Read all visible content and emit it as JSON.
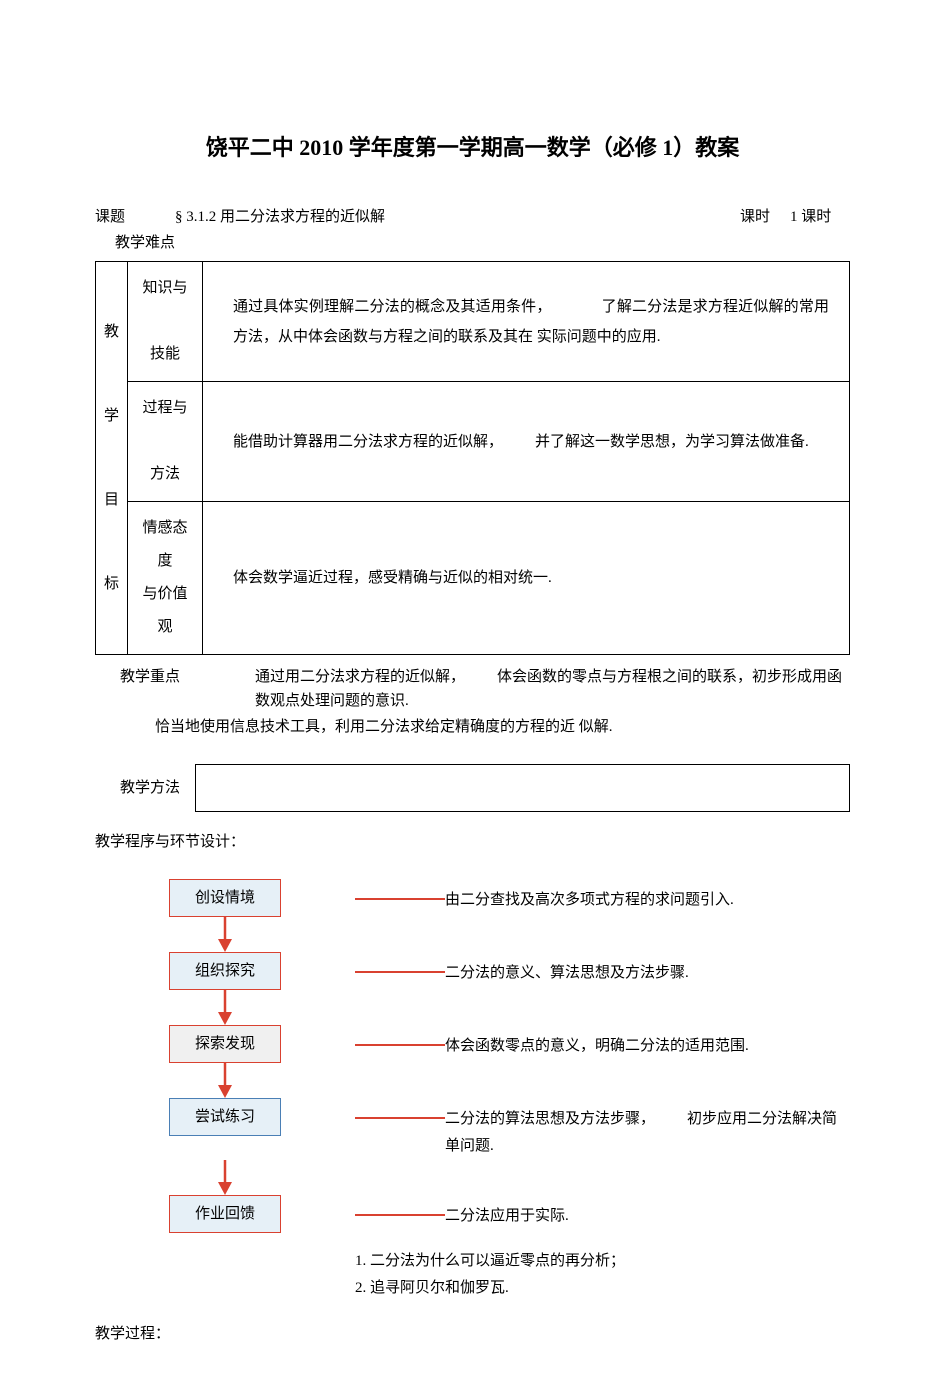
{
  "title": "饶平二中 2010 学年度第一学期高一数学（必修 1）教案",
  "topic": {
    "label": "课题",
    "value": "§ 3.1.2 用二分法求方程的近似解",
    "period_label": "课时",
    "period_value": "1 课时"
  },
  "difficulty_label_top": "教学难点",
  "goals": {
    "header": "教学目标",
    "rows": [
      {
        "sub": "知识与\n\n技能",
        "text_parts": [
          "通过具体实例理解二分法的概念及其适用条件，",
          "了解二分法是求方程近似解的常用方法，从中体会函数与方程之间的联系及其在 实际问题中的应用."
        ]
      },
      {
        "sub": "过程与\n\n方法",
        "text_parts": [
          "能借助计算器用二分法求方程的近似解，",
          "并了解这一数学思想，为学习算法做准备."
        ]
      },
      {
        "sub": "情感态度\n与价值观",
        "text_parts": [
          "体会数学逼近过程，感受精确与近似的相对统一."
        ]
      }
    ]
  },
  "emphasis": {
    "label": "教学重点",
    "text_parts": [
      "通过用二分法求方程的近似解，",
      "体会函数的零点与方程根之间的联系，初步形成用函数观点处理问题的意识."
    ]
  },
  "difficulty_text": "恰当地使用信息技术工具，利用二分法求给定精确度的方程的近 似解.",
  "method_label": "教学方法",
  "program_label": "教学程序与环节设计：",
  "flowchart": {
    "connector_color": "#d94130",
    "arrow_color": "#d94130",
    "nodes": [
      {
        "label": "创设情境",
        "border_color": "#d94130",
        "bg_color": "#e6f0f7",
        "desc": "由二分查找及高次多项式方程的求问题引入."
      },
      {
        "label": "组织探究",
        "border_color": "#d94130",
        "bg_color": "#e6f0f7",
        "desc": "二分法的意义、算法思想及方法步骤."
      },
      {
        "label": "探索发现",
        "border_color": "#d94130",
        "bg_color": "#f0f0f0",
        "desc": "体会函数零点的意义，明确二分法的适用范围."
      },
      {
        "label": "尝试练习",
        "border_color": "#4a7fb5",
        "bg_color": "#e6f0f7",
        "desc_parts": [
          "二分法的算法思想及方法步骤，",
          "初步应用二分法解决简单问题."
        ]
      },
      {
        "label": "作业回馈",
        "border_color": "#d94130",
        "bg_color": "#e6f0f7",
        "desc": "二分法应用于实际."
      }
    ],
    "extra_lines": [
      "1. 二分法为什么可以逼近零点的再分析；",
      "2. 追寻阿贝尔和伽罗瓦."
    ]
  },
  "process_label": "教学过程："
}
